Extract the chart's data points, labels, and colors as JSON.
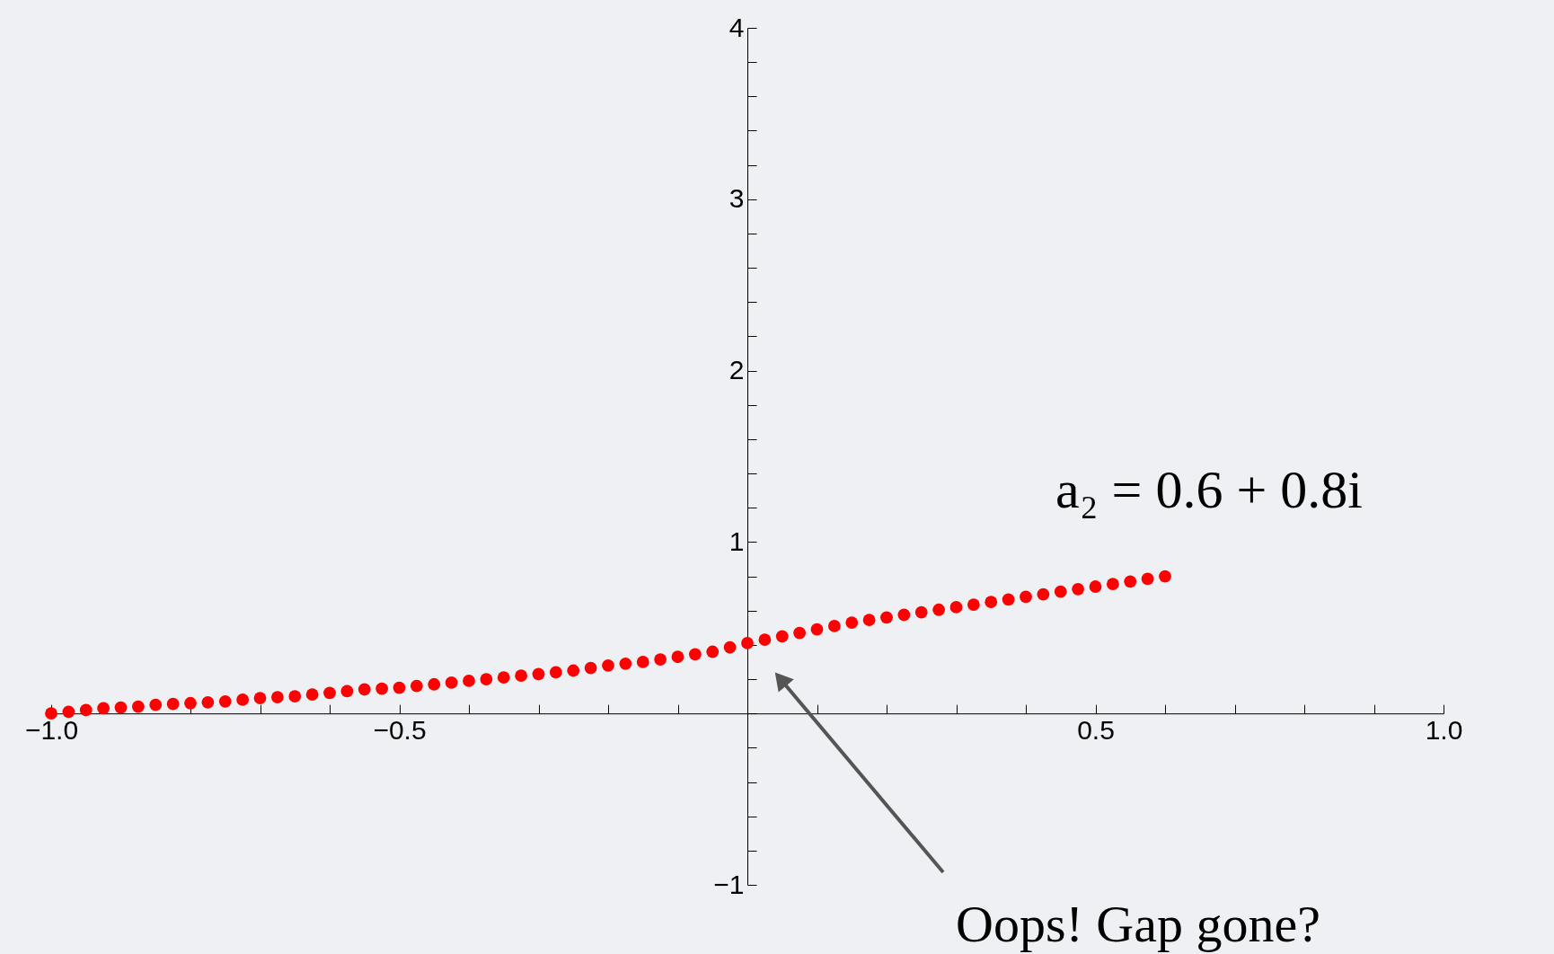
{
  "chart_data": {
    "type": "scatter",
    "marker": "circle",
    "grid": false,
    "x": [
      -1,
      -0.975,
      -0.95,
      -0.925,
      -0.9,
      -0.875,
      -0.85,
      -0.825,
      -0.8,
      -0.775,
      -0.75,
      -0.725,
      -0.7,
      -0.675,
      -0.65,
      -0.625,
      -0.6,
      -0.575,
      -0.55,
      -0.525,
      -0.5,
      -0.475,
      -0.45,
      -0.425,
      -0.4,
      -0.375,
      -0.35,
      -0.325,
      -0.3,
      -0.275,
      -0.25,
      -0.225,
      -0.2,
      -0.175,
      -0.15,
      -0.125,
      -0.1,
      -0.075,
      -0.05,
      -0.025,
      0,
      0.025,
      0.05,
      0.075,
      0.1,
      0.125,
      0.15,
      0.175,
      0.2,
      0.225,
      0.25,
      0.275,
      0.3,
      0.325,
      0.35,
      0.375,
      0.4,
      0.425,
      0.45,
      0.475,
      0.5,
      0.525,
      0.55,
      0.575,
      0.6
    ],
    "series": [
      {
        "color": "#ff0000",
        "values": [
          0.0,
          0.01,
          0.02,
          0.03,
          0.035,
          0.04,
          0.05,
          0.055,
          0.06,
          0.065,
          0.07,
          0.08,
          0.09,
          0.095,
          0.1,
          0.11,
          0.12,
          0.13,
          0.14,
          0.145,
          0.15,
          0.16,
          0.17,
          0.18,
          0.19,
          0.2,
          0.21,
          0.22,
          0.23,
          0.24,
          0.25,
          0.265,
          0.28,
          0.29,
          0.3,
          0.315,
          0.33,
          0.345,
          0.36,
          0.385,
          0.41,
          0.43,
          0.45,
          0.47,
          0.49,
          0.51,
          0.53,
          0.545,
          0.56,
          0.575,
          0.59,
          0.605,
          0.62,
          0.635,
          0.65,
          0.665,
          0.68,
          0.695,
          0.71,
          0.725,
          0.74,
          0.755,
          0.77,
          0.785,
          0.8
        ]
      }
    ],
    "xlim": [
      -1,
      1
    ],
    "xticks": [
      {
        "value": -1,
        "label": "−1.0"
      },
      {
        "value": -0.9,
        "label": null
      },
      {
        "value": -0.8,
        "label": null
      },
      {
        "value": -0.7,
        "label": null
      },
      {
        "value": -0.6,
        "label": null
      },
      {
        "value": -0.5,
        "label": "−0.5"
      },
      {
        "value": -0.4,
        "label": null
      },
      {
        "value": -0.3,
        "label": null
      },
      {
        "value": -0.2,
        "label": null
      },
      {
        "value": -0.1,
        "label": null
      },
      {
        "value": 0,
        "label": null
      },
      {
        "value": 0.1,
        "label": null
      },
      {
        "value": 0.2,
        "label": null
      },
      {
        "value": 0.3,
        "label": null
      },
      {
        "value": 0.4,
        "label": null
      },
      {
        "value": 0.5,
        "label": "0.5"
      },
      {
        "value": 0.6,
        "label": null
      },
      {
        "value": 0.7,
        "label": null
      },
      {
        "value": 0.8,
        "label": null
      },
      {
        "value": 0.9,
        "label": null
      },
      {
        "value": 1,
        "label": "1.0"
      }
    ],
    "ylim": [
      -1,
      4
    ],
    "yticks": [
      {
        "value": -1,
        "label": "−1"
      },
      {
        "value": -0.8,
        "label": null
      },
      {
        "value": -0.6,
        "label": null
      },
      {
        "value": -0.4,
        "label": null
      },
      {
        "value": -0.2,
        "label": null
      },
      {
        "value": 0,
        "label": null
      },
      {
        "value": 0.2,
        "label": null
      },
      {
        "value": 0.4,
        "label": null
      },
      {
        "value": 0.6,
        "label": null
      },
      {
        "value": 0.8,
        "label": null
      },
      1,
      {
        "value": 1.2,
        "label": null
      },
      {
        "value": 1.4,
        "label": null
      },
      {
        "value": 1.6,
        "label": null
      },
      {
        "value": 1.8,
        "label": null
      },
      2,
      {
        "value": 2.2,
        "label": null
      },
      {
        "value": 2.4,
        "label": null
      },
      {
        "value": 2.6,
        "label": null
      },
      {
        "value": 2.8,
        "label": null
      },
      3,
      {
        "value": 3.2,
        "label": null
      },
      {
        "value": 3.4,
        "label": null
      },
      {
        "value": 3.6,
        "label": null
      },
      {
        "value": 3.8,
        "label": null
      },
      4
    ],
    "annotations": [
      {
        "text": "a₂ = 0.6 + 0.8i",
        "x": 0.6,
        "y": 0.8
      },
      "Oops!  Gap gone?"
    ]
  }
}
